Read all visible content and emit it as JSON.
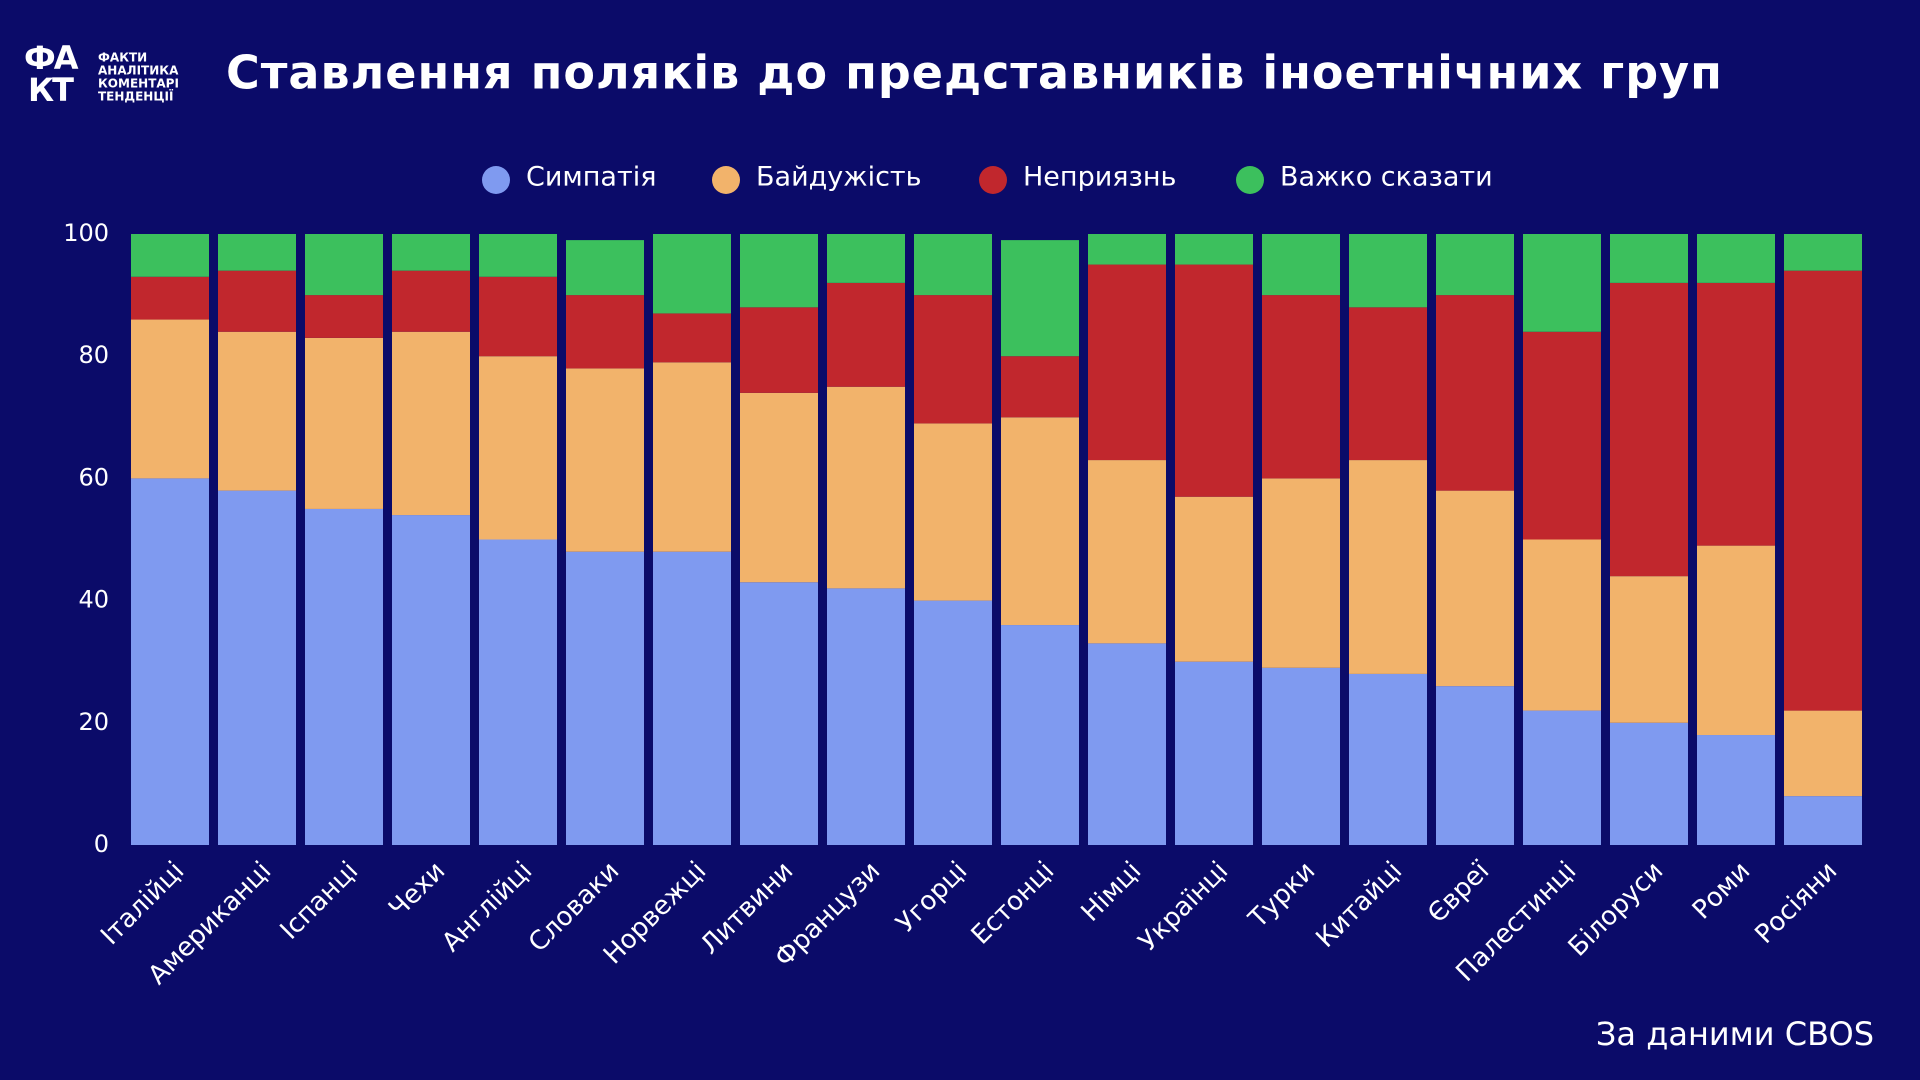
{
  "logo": {
    "mark": [
      "ФА",
      "КТ"
    ],
    "lines": [
      "ФАКТИ",
      "АНАЛІТИКА",
      "КОМЕНТАРІ",
      "ТЕНДЕНЦІЇ"
    ]
  },
  "chart_data": {
    "type": "stacked_bar",
    "title": "Ставлення поляків до представників іноетнічних груп",
    "source": "За даними CBOS",
    "categories": [
      "Італійці",
      "Американці",
      "Іспанці",
      "Чехи",
      "Англійці",
      "Словаки",
      "Норвежці",
      "Литвини",
      "Французи",
      "Угорці",
      "Естонці",
      "Німці",
      "Українці",
      "Турки",
      "Китайці",
      "Євреї",
      "Палестинці",
      "Білоруси",
      "Роми",
      "Росіяни"
    ],
    "series": [
      {
        "name": "Симпатія",
        "color": "#7f9af0",
        "values": [
          60,
          58,
          55,
          54,
          50,
          48,
          48,
          43,
          42,
          40,
          36,
          33,
          30,
          29,
          28,
          26,
          22,
          20,
          18,
          8
        ]
      },
      {
        "name": "Байдужість",
        "color": "#f2b36b",
        "values": [
          26,
          26,
          28,
          30,
          30,
          30,
          31,
          31,
          33,
          29,
          34,
          30,
          27,
          31,
          35,
          32,
          28,
          24,
          31,
          14
        ]
      },
      {
        "name": "Неприязнь",
        "color": "#c1272d",
        "values": [
          7,
          10,
          7,
          10,
          13,
          12,
          8,
          14,
          17,
          21,
          10,
          32,
          38,
          30,
          25,
          32,
          34,
          48,
          43,
          72
        ]
      },
      {
        "name": "Важко сказати",
        "color": "#3cc05d",
        "values": [
          7,
          6,
          10,
          6,
          7,
          9,
          13,
          12,
          8,
          10,
          19,
          5,
          5,
          10,
          12,
          10,
          16,
          8,
          8,
          6
        ]
      }
    ],
    "ylim": [
      0,
      100
    ],
    "yticks": [
      0,
      20,
      40,
      60,
      80,
      100
    ],
    "grid": false,
    "legend": "top"
  }
}
